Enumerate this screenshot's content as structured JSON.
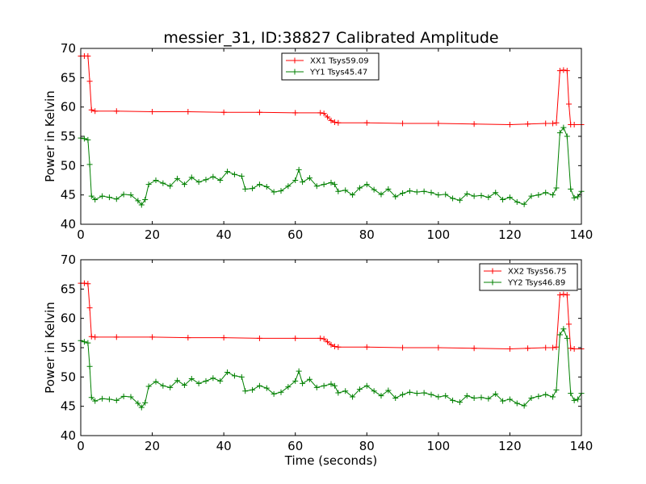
{
  "colors": {
    "xx": "#ff0000",
    "yy": "#008000"
  },
  "chart_data": [
    {
      "type": "line",
      "title": "messier_31, ID:38827 Calibrated Amplitude",
      "xlabel": "",
      "ylabel": "Power in Kelvin",
      "xlim": [
        0,
        140
      ],
      "ylim": [
        40,
        70
      ],
      "x_ticks": [
        "0",
        "20",
        "40",
        "60",
        "80",
        "100",
        "120",
        "140"
      ],
      "y_ticks": [
        "40",
        "45",
        "50",
        "55",
        "60",
        "65",
        "70"
      ],
      "legend_position": "top-center",
      "marker": "+",
      "series": [
        {
          "name": "XX1 Tsys59.09",
          "color": "#ff0000",
          "points": [
            [
              0,
              68.7
            ],
            [
              1,
              68.7
            ],
            [
              2,
              68.7
            ],
            [
              2.5,
              64.4
            ],
            [
              3,
              59.5
            ],
            [
              4,
              59.3
            ],
            [
              10,
              59.3
            ],
            [
              20,
              59.2
            ],
            [
              30,
              59.2
            ],
            [
              40,
              59.1
            ],
            [
              50,
              59.1
            ],
            [
              60,
              59.0
            ],
            [
              67,
              59.0
            ],
            [
              68,
              58.9
            ],
            [
              69,
              58.3
            ],
            [
              70,
              57.7
            ],
            [
              71,
              57.4
            ],
            [
              72,
              57.3
            ],
            [
              80,
              57.3
            ],
            [
              90,
              57.2
            ],
            [
              100,
              57.2
            ],
            [
              110,
              57.1
            ],
            [
              120,
              57.0
            ],
            [
              125,
              57.1
            ],
            [
              130,
              57.2
            ],
            [
              132,
              57.2
            ],
            [
              133,
              57.3
            ],
            [
              134,
              66.2
            ],
            [
              135,
              66.3
            ],
            [
              136,
              66.2
            ],
            [
              136.5,
              60.5
            ],
            [
              137,
              57.0
            ],
            [
              138,
              57.0
            ],
            [
              140,
              57.0
            ]
          ]
        },
        {
          "name": "YY1 Tsys45.47",
          "color": "#008000",
          "points": [
            [
              0,
              54.7
            ],
            [
              1,
              54.6
            ],
            [
              2,
              54.4
            ],
            [
              2.5,
              50.2
            ],
            [
              3,
              44.8
            ],
            [
              4,
              44.2
            ],
            [
              6,
              44.8
            ],
            [
              8,
              44.6
            ],
            [
              10,
              44.3
            ],
            [
              12,
              45.1
            ],
            [
              14,
              45.0
            ],
            [
              16,
              44.0
            ],
            [
              17,
              43.3
            ],
            [
              18,
              44.2
            ],
            [
              19,
              46.8
            ],
            [
              21,
              47.5
            ],
            [
              23,
              47.0
            ],
            [
              25,
              46.5
            ],
            [
              27,
              47.8
            ],
            [
              29,
              46.8
            ],
            [
              31,
              48.0
            ],
            [
              33,
              47.2
            ],
            [
              35,
              47.6
            ],
            [
              37,
              48.1
            ],
            [
              39,
              47.5
            ],
            [
              41,
              49.0
            ],
            [
              43,
              48.5
            ],
            [
              45,
              48.2
            ],
            [
              46,
              46.0
            ],
            [
              48,
              46.1
            ],
            [
              50,
              46.8
            ],
            [
              52,
              46.4
            ],
            [
              54,
              45.5
            ],
            [
              56,
              45.7
            ],
            [
              58,
              46.5
            ],
            [
              60,
              47.5
            ],
            [
              61,
              49.3
            ],
            [
              62,
              47.2
            ],
            [
              64,
              47.9
            ],
            [
              66,
              46.5
            ],
            [
              68,
              46.8
            ],
            [
              70,
              47.1
            ],
            [
              71,
              46.8
            ],
            [
              72,
              45.6
            ],
            [
              74,
              45.8
            ],
            [
              76,
              45.0
            ],
            [
              78,
              46.2
            ],
            [
              80,
              46.8
            ],
            [
              82,
              45.9
            ],
            [
              84,
              45.1
            ],
            [
              86,
              46.0
            ],
            [
              88,
              44.7
            ],
            [
              90,
              45.3
            ],
            [
              92,
              45.7
            ],
            [
              94,
              45.5
            ],
            [
              96,
              45.6
            ],
            [
              98,
              45.4
            ],
            [
              100,
              45.0
            ],
            [
              102,
              45.1
            ],
            [
              104,
              44.4
            ],
            [
              106,
              44.1
            ],
            [
              108,
              45.2
            ],
            [
              110,
              44.8
            ],
            [
              112,
              44.9
            ],
            [
              114,
              44.6
            ],
            [
              116,
              45.4
            ],
            [
              118,
              44.2
            ],
            [
              120,
              44.6
            ],
            [
              122,
              43.8
            ],
            [
              124,
              43.4
            ],
            [
              126,
              44.8
            ],
            [
              128,
              45.0
            ],
            [
              130,
              45.4
            ],
            [
              132,
              45.0
            ],
            [
              133,
              46.2
            ],
            [
              134,
              55.6
            ],
            [
              135,
              56.5
            ],
            [
              136,
              55.0
            ],
            [
              137,
              46.0
            ],
            [
              138,
              44.5
            ],
            [
              139,
              44.7
            ],
            [
              140,
              45.6
            ]
          ]
        }
      ]
    },
    {
      "type": "line",
      "title": "",
      "xlabel": "Time (seconds)",
      "ylabel": "Power in Kelvin",
      "xlim": [
        0,
        140
      ],
      "ylim": [
        40,
        70
      ],
      "x_ticks": [
        "0",
        "20",
        "40",
        "60",
        "80",
        "100",
        "120",
        "140"
      ],
      "y_ticks": [
        "40",
        "45",
        "50",
        "55",
        "60",
        "65",
        "70"
      ],
      "legend_position": "top-right",
      "marker": "+",
      "series": [
        {
          "name": "XX2 Tsys56.75",
          "color": "#ff0000",
          "points": [
            [
              0,
              66.0
            ],
            [
              1,
              66.0
            ],
            [
              2,
              65.9
            ],
            [
              2.5,
              61.8
            ],
            [
              3,
              56.9
            ],
            [
              4,
              56.8
            ],
            [
              10,
              56.8
            ],
            [
              20,
              56.8
            ],
            [
              30,
              56.7
            ],
            [
              40,
              56.7
            ],
            [
              50,
              56.6
            ],
            [
              60,
              56.6
            ],
            [
              67,
              56.6
            ],
            [
              68,
              56.5
            ],
            [
              69,
              56.0
            ],
            [
              70,
              55.5
            ],
            [
              71,
              55.2
            ],
            [
              72,
              55.1
            ],
            [
              80,
              55.1
            ],
            [
              90,
              55.0
            ],
            [
              100,
              55.0
            ],
            [
              110,
              54.9
            ],
            [
              120,
              54.8
            ],
            [
              125,
              54.9
            ],
            [
              130,
              55.0
            ],
            [
              132,
              55.0
            ],
            [
              133,
              55.1
            ],
            [
              134,
              64.0
            ],
            [
              135,
              64.1
            ],
            [
              136,
              64.0
            ],
            [
              136.5,
              59.0
            ],
            [
              137,
              54.9
            ],
            [
              138,
              54.8
            ],
            [
              140,
              54.8
            ]
          ]
        },
        {
          "name": "YY2 Tsys46.89",
          "color": "#008000",
          "points": [
            [
              0,
              56.2
            ],
            [
              1,
              56.0
            ],
            [
              2,
              55.8
            ],
            [
              2.5,
              51.8
            ],
            [
              3,
              46.5
            ],
            [
              4,
              45.9
            ],
            [
              6,
              46.3
            ],
            [
              8,
              46.2
            ],
            [
              10,
              46.0
            ],
            [
              12,
              46.7
            ],
            [
              14,
              46.6
            ],
            [
              16,
              45.5
            ],
            [
              17,
              44.8
            ],
            [
              18,
              45.6
            ],
            [
              19,
              48.4
            ],
            [
              21,
              49.2
            ],
            [
              23,
              48.5
            ],
            [
              25,
              48.2
            ],
            [
              27,
              49.4
            ],
            [
              29,
              48.6
            ],
            [
              31,
              49.7
            ],
            [
              33,
              48.9
            ],
            [
              35,
              49.3
            ],
            [
              37,
              49.8
            ],
            [
              39,
              49.3
            ],
            [
              41,
              50.8
            ],
            [
              43,
              50.2
            ],
            [
              45,
              50.0
            ],
            [
              46,
              47.6
            ],
            [
              48,
              47.8
            ],
            [
              50,
              48.5
            ],
            [
              52,
              48.1
            ],
            [
              54,
              47.1
            ],
            [
              56,
              47.4
            ],
            [
              58,
              48.3
            ],
            [
              60,
              49.3
            ],
            [
              61,
              51.0
            ],
            [
              62,
              48.9
            ],
            [
              64,
              49.6
            ],
            [
              66,
              48.2
            ],
            [
              68,
              48.5
            ],
            [
              70,
              48.8
            ],
            [
              71,
              48.5
            ],
            [
              72,
              47.3
            ],
            [
              74,
              47.6
            ],
            [
              76,
              46.6
            ],
            [
              78,
              47.9
            ],
            [
              80,
              48.5
            ],
            [
              82,
              47.6
            ],
            [
              84,
              46.8
            ],
            [
              86,
              47.7
            ],
            [
              88,
              46.4
            ],
            [
              90,
              47.0
            ],
            [
              92,
              47.4
            ],
            [
              94,
              47.2
            ],
            [
              96,
              47.3
            ],
            [
              98,
              47.0
            ],
            [
              100,
              46.6
            ],
            [
              102,
              46.8
            ],
            [
              104,
              46.0
            ],
            [
              106,
              45.7
            ],
            [
              108,
              46.8
            ],
            [
              110,
              46.4
            ],
            [
              112,
              46.5
            ],
            [
              114,
              46.3
            ],
            [
              116,
              47.1
            ],
            [
              118,
              45.9
            ],
            [
              120,
              46.2
            ],
            [
              122,
              45.5
            ],
            [
              124,
              45.1
            ],
            [
              126,
              46.4
            ],
            [
              128,
              46.7
            ],
            [
              130,
              47.0
            ],
            [
              132,
              46.6
            ],
            [
              133,
              47.8
            ],
            [
              134,
              57.2
            ],
            [
              135,
              58.2
            ],
            [
              136,
              56.6
            ],
            [
              137,
              47.2
            ],
            [
              138,
              46.0
            ],
            [
              139,
              46.2
            ],
            [
              140,
              47.2
            ]
          ]
        }
      ]
    }
  ]
}
